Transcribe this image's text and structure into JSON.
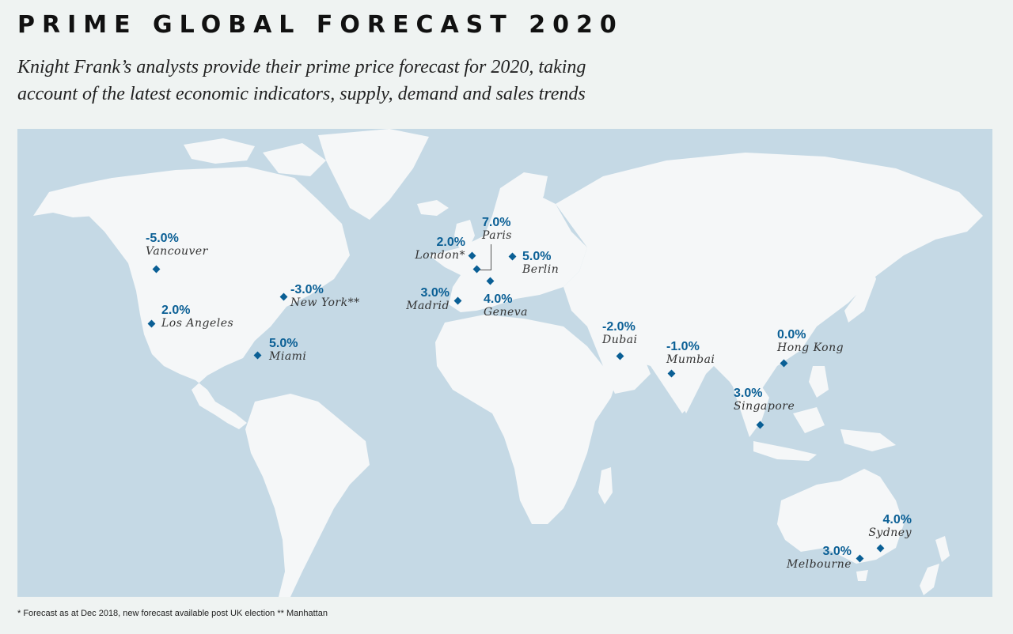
{
  "header": {
    "title": "PRIME GLOBAL FORECAST 2020",
    "subtitle_line1": "Knight Frank’s analysts provide their prime price forecast for 2020, taking",
    "subtitle_line2": "account of the latest economic indicators, supply, demand and sales trends"
  },
  "colors": {
    "accent": "#0a5f95",
    "ocean": "#c5d9e5",
    "land": "#f5f7f8",
    "background": "#eff3f2"
  },
  "markers": [
    {
      "id": "vancouver",
      "forecast": "-5.0%",
      "city": "Vancouver"
    },
    {
      "id": "los-angeles",
      "forecast": "2.0%",
      "city": "Los Angeles"
    },
    {
      "id": "new-york",
      "forecast": "-3.0%",
      "city": "New York**"
    },
    {
      "id": "miami",
      "forecast": "5.0%",
      "city": "Miami"
    },
    {
      "id": "london",
      "forecast": "2.0%",
      "city": "London*"
    },
    {
      "id": "paris",
      "forecast": "7.0%",
      "city": "Paris"
    },
    {
      "id": "berlin",
      "forecast": "5.0%",
      "city": "Berlin"
    },
    {
      "id": "madrid",
      "forecast": "3.0%",
      "city": "Madrid"
    },
    {
      "id": "geneva",
      "forecast": "4.0%",
      "city": "Geneva"
    },
    {
      "id": "dubai",
      "forecast": "-2.0%",
      "city": "Dubai"
    },
    {
      "id": "mumbai",
      "forecast": "-1.0%",
      "city": "Mumbai"
    },
    {
      "id": "hong-kong",
      "forecast": "0.0%",
      "city": "Hong Kong"
    },
    {
      "id": "singapore",
      "forecast": "3.0%",
      "city": "Singapore"
    },
    {
      "id": "sydney",
      "forecast": "4.0%",
      "city": "Sydney"
    },
    {
      "id": "melbourne",
      "forecast": "3.0%",
      "city": "Melbourne"
    }
  ],
  "footnote": "* Forecast as at Dec 2018, new forecast available post UK election  ** Manhattan"
}
